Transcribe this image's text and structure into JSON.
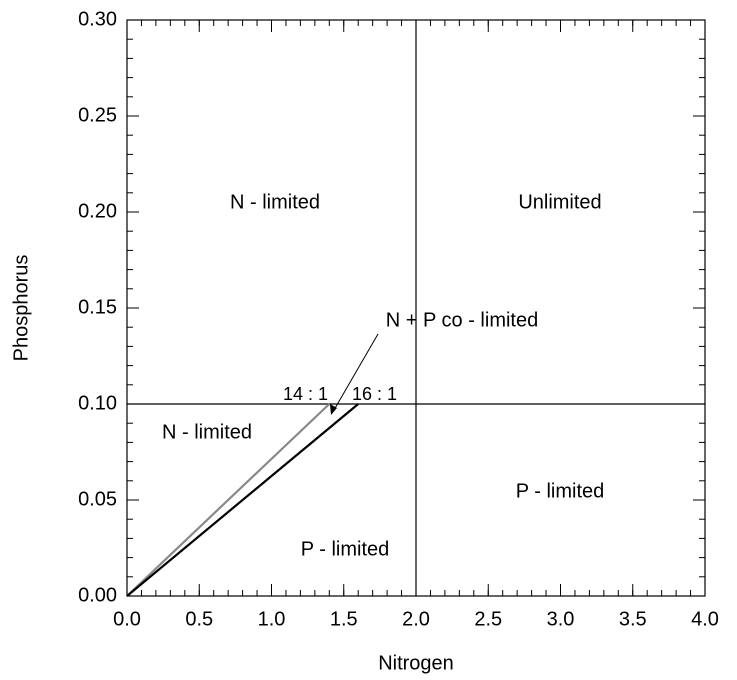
{
  "chart_data": {
    "type": "line",
    "xlabel": "Nitrogen",
    "ylabel": "Phosphorus",
    "xlim": [
      0,
      4.0
    ],
    "ylim": [
      0,
      0.3
    ],
    "xticks": [
      {
        "value": 0,
        "label": "0.0"
      },
      {
        "value": 0.5,
        "label": "0.5"
      },
      {
        "value": 1.0,
        "label": "1.0"
      },
      {
        "value": 1.5,
        "label": "1.5"
      },
      {
        "value": 2.0,
        "label": "2.0"
      },
      {
        "value": 2.5,
        "label": "2.5"
      },
      {
        "value": 3.0,
        "label": "3.0"
      },
      {
        "value": 3.5,
        "label": "3.5"
      },
      {
        "value": 4.0,
        "label": "4.0"
      }
    ],
    "yticks": [
      {
        "value": 0,
        "label": "0.00"
      },
      {
        "value": 0.05,
        "label": "0.05"
      },
      {
        "value": 0.1,
        "label": "0.10"
      },
      {
        "value": 0.15,
        "label": "0.15"
      },
      {
        "value": 0.2,
        "label": "0.20"
      },
      {
        "value": 0.25,
        "label": "0.25"
      },
      {
        "value": 0.3,
        "label": "0.30"
      }
    ],
    "xminor": 0.1,
    "yminor": 0.01,
    "vline": 2.0,
    "hline": 0.1,
    "series": [
      {
        "name": "14 : 1",
        "color": "#888888",
        "x": [
          0,
          1.4
        ],
        "values": [
          0,
          0.1
        ]
      },
      {
        "name": "16 : 1",
        "color": "#000000",
        "x": [
          0,
          1.6
        ],
        "values": [
          0,
          0.1
        ]
      }
    ],
    "annotations": [
      "N - limited",
      "Unlimited",
      "N + P co - limited",
      "N - limited",
      "P - limited",
      "P - limited"
    ]
  }
}
